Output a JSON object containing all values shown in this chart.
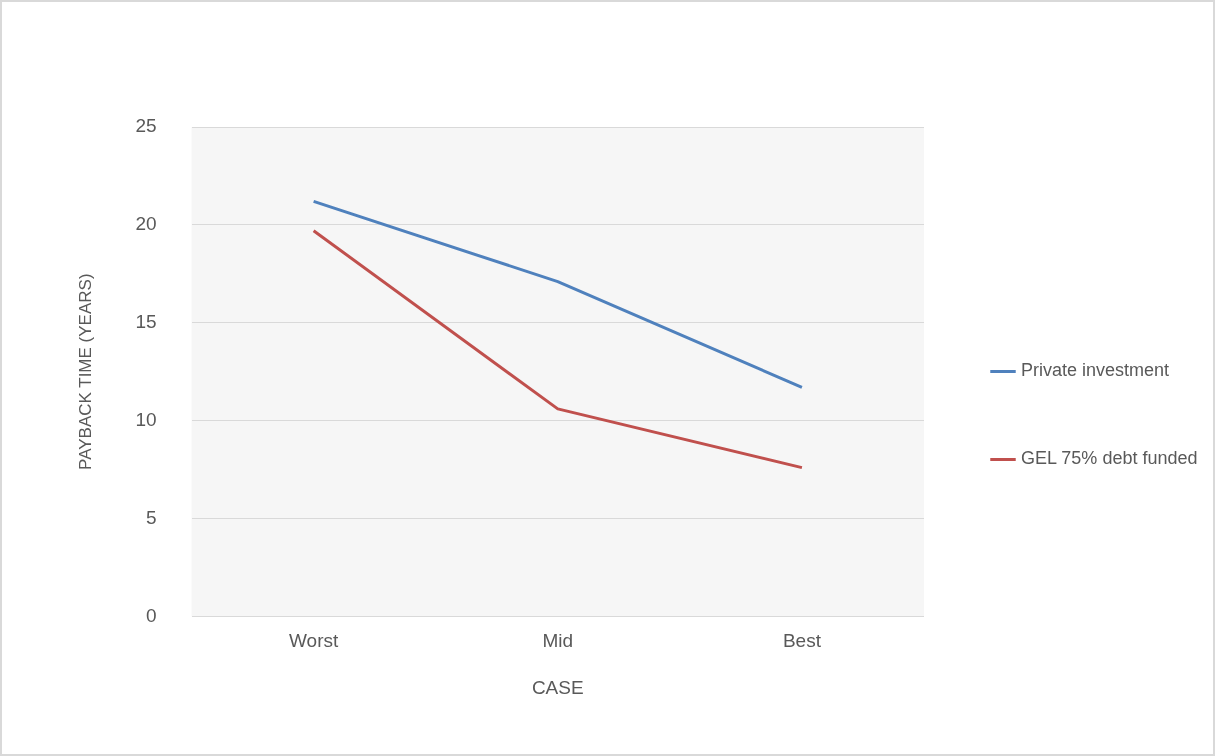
{
  "chart_data": {
    "type": "line",
    "xlabel": "CASE",
    "ylabel": "PAYBACK TIME (YEARS)",
    "categories": [
      "Worst",
      "Mid",
      "Best"
    ],
    "series": [
      {
        "name": "Private investment",
        "color": "#4f81bd",
        "values": [
          21.2,
          17.1,
          11.7
        ]
      },
      {
        "name": "GEL 75% debt funded",
        "color": "#c0504d",
        "values": [
          19.7,
          10.6,
          7.6
        ]
      }
    ],
    "ylim": [
      0,
      25
    ],
    "yticks": [
      0,
      5,
      10,
      15,
      20,
      25
    ],
    "grid": "y",
    "legend": "right",
    "marker": "none",
    "line_style": "solid"
  }
}
